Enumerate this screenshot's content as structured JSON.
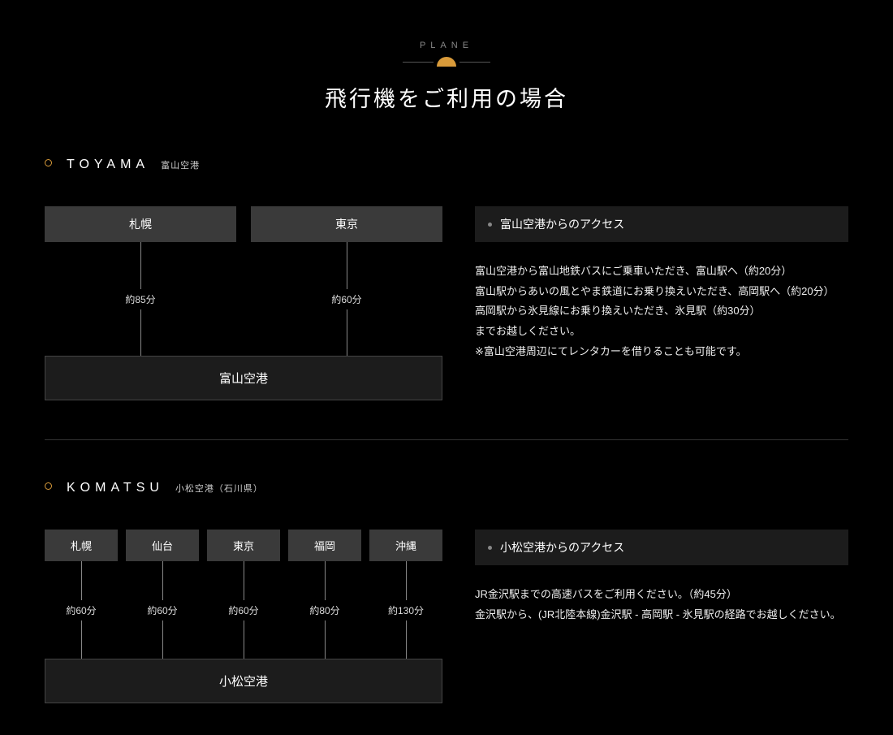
{
  "header": {
    "subtitle": "PLANE",
    "title": "飛行機をご利用の場合"
  },
  "sections": [
    {
      "key": "toyama",
      "name": "TOYAMA",
      "sub": "富山空港",
      "origins": [
        {
          "label": "札幌",
          "duration": "約85分"
        },
        {
          "label": "東京",
          "duration": "約60分"
        }
      ],
      "destination": "富山空港",
      "info_title": "富山空港からのアクセス",
      "info_body": "富山空港から富山地鉄バスにご乗車いただき、富山駅へ（約20分）\n富山駅からあいの風とやま鉄道にお乗り換えいただき、高岡駅へ（約20分）\n高岡駅から氷見線にお乗り換えいただき、氷見駅（約30分）\nまでお越しください。\n※富山空港周辺にてレンタカーを借りることも可能です。"
    },
    {
      "key": "komatsu",
      "name": "KOMATSU",
      "sub": "小松空港（石川県）",
      "origins": [
        {
          "label": "札幌",
          "duration": "約60分"
        },
        {
          "label": "仙台",
          "duration": "約60分"
        },
        {
          "label": "東京",
          "duration": "約60分"
        },
        {
          "label": "福岡",
          "duration": "約80分"
        },
        {
          "label": "沖縄",
          "duration": "約130分"
        }
      ],
      "destination": "小松空港",
      "info_title": "小松空港からのアクセス",
      "info_body": "JR金沢駅までの高速バスをご利用ください。（約45分）\n金沢駅から、(JR北陸本線)金沢駅 - 高岡駅 - 氷見駅の経路でお越しください。"
    }
  ],
  "colors": {
    "background": "#000000",
    "text": "#ffffff",
    "accent": "#d99b3a",
    "box": "#3a3a3a",
    "panel": "#1c1c1c",
    "line": "#888888",
    "divider": "#333333"
  }
}
